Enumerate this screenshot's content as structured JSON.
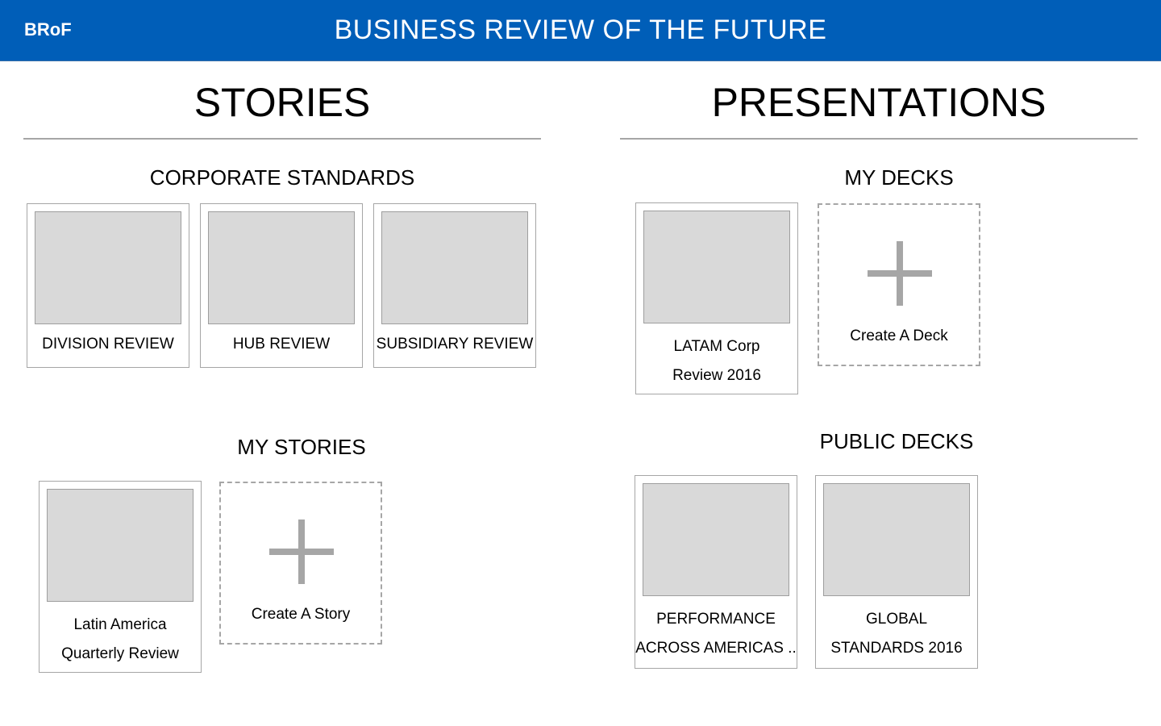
{
  "header": {
    "logo": "BRoF",
    "title": "BUSINESS REVIEW OF THE FUTURE"
  },
  "stories": {
    "title": "STORIES",
    "corporate_standards": {
      "heading": "CORPORATE STANDARDS",
      "cards": [
        {
          "label": "DIVISION REVIEW"
        },
        {
          "label": "HUB REVIEW"
        },
        {
          "label": "SUBSIDIARY REVIEW"
        }
      ]
    },
    "my_stories": {
      "heading": "MY STORIES",
      "cards": [
        {
          "label_line1": "Latin America",
          "label_line2": "Quarterly Review"
        }
      ],
      "create_label": "Create A Story"
    }
  },
  "presentations": {
    "title": "PRESENTATIONS",
    "my_decks": {
      "heading": "MY DECKS",
      "cards": [
        {
          "label_line1": "LATAM Corp",
          "label_line2": "Review 2016"
        }
      ],
      "create_label": "Create A Deck"
    },
    "public_decks": {
      "heading": "PUBLIC DECKS",
      "cards": [
        {
          "label_line1": "PERFORMANCE",
          "label_line2": "ACROSS AMERICAS .."
        },
        {
          "label_line1": "GLOBAL",
          "label_line2": "STANDARDS 2016"
        }
      ]
    }
  },
  "colors": {
    "header_bg": "#005eb8",
    "thumb_bg": "#d9d9d9",
    "border": "#a6a6a6"
  }
}
